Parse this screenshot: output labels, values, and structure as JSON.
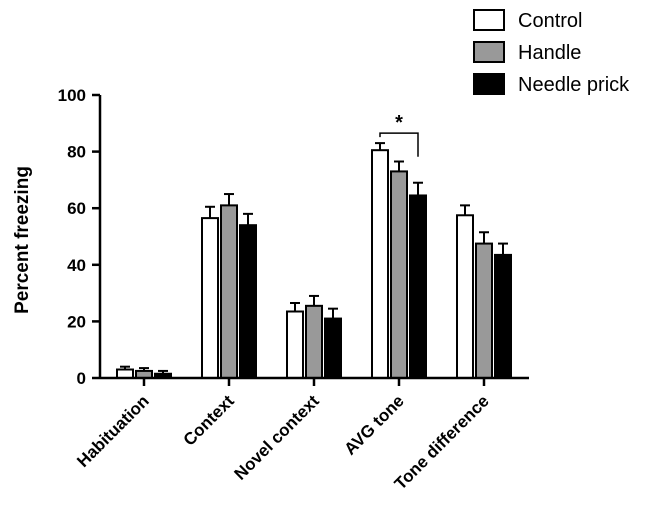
{
  "chart_data": {
    "type": "bar",
    "title": "",
    "xlabel": "",
    "ylabel": "Percent freezing",
    "ylim": [
      0,
      100
    ],
    "yticks": [
      0,
      20,
      40,
      60,
      80,
      100
    ],
    "grid": false,
    "legend_position": "top-right",
    "categories": [
      "Habituation",
      "Context",
      "Novel context",
      "AVG tone",
      "Tone difference"
    ],
    "series": [
      {
        "name": "Control",
        "color": "#ffffff",
        "values": [
          3,
          56.5,
          23.5,
          80.5,
          57.5
        ],
        "errors": [
          1,
          4,
          3,
          2.5,
          3.5
        ]
      },
      {
        "name": "Handle",
        "color": "#999999",
        "values": [
          2.5,
          61,
          25.5,
          73,
          47.5
        ],
        "errors": [
          1,
          4,
          3.5,
          3.5,
          4
        ]
      },
      {
        "name": "Needle prick",
        "color": "#000000",
        "values": [
          1.5,
          54,
          21,
          64.5,
          43.5
        ],
        "errors": [
          1,
          4,
          3.5,
          4.5,
          4
        ]
      }
    ],
    "annotations": [
      {
        "text": "*",
        "type": "significance-bracket",
        "category": "AVG tone",
        "from_series": "Control",
        "to_series": "Needle prick"
      }
    ]
  }
}
